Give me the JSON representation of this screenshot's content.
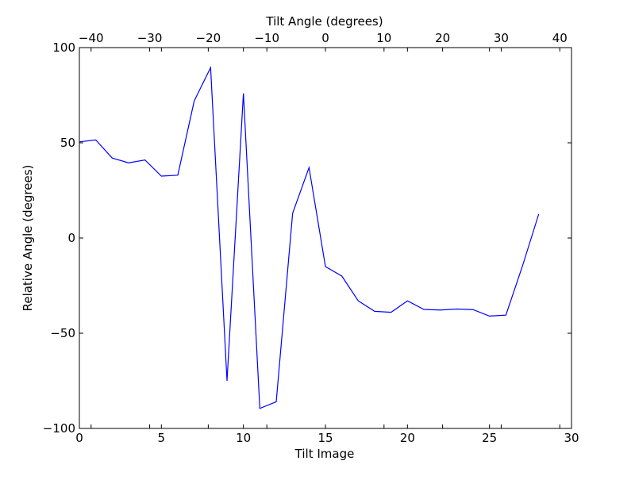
{
  "chart_data": {
    "type": "line",
    "title": "",
    "xlabel": "Tilt Image",
    "ylabel": "Relative Angle (degrees)",
    "x2label": "Tilt Angle (degrees)",
    "xlim": [
      0,
      30
    ],
    "ylim": [
      -100,
      100
    ],
    "x2lim": [
      -42,
      42
    ],
    "xticks": [
      0,
      5,
      10,
      15,
      20,
      25,
      30
    ],
    "yticks": [
      -100,
      -50,
      0,
      50,
      100
    ],
    "x2ticks": [
      -40,
      -30,
      -20,
      -10,
      0,
      10,
      20,
      30,
      40
    ],
    "xtick_labels": [
      "0",
      "5",
      "10",
      "15",
      "20",
      "25",
      "30"
    ],
    "ytick_labels": [
      "−100",
      "−50",
      "0",
      "50",
      "100"
    ],
    "x2tick_labels": [
      "−40",
      "−30",
      "−20",
      "−10",
      "0",
      "10",
      "20",
      "30",
      "40"
    ],
    "grid": false,
    "series": [
      {
        "color": "#0000ff",
        "x": [
          0,
          1,
          2,
          3,
          4,
          5,
          6,
          7,
          8,
          9,
          10,
          11,
          12,
          13,
          14,
          15,
          16,
          17,
          18,
          19,
          20,
          21,
          22,
          23,
          24,
          25,
          26,
          27,
          28
        ],
        "values": [
          50.5,
          51.5,
          42,
          39.5,
          41,
          32.5,
          33,
          72,
          89.5,
          -75,
          76,
          -89.5,
          -86,
          13,
          37,
          -15,
          -20,
          -33,
          -38.5,
          -39,
          -33,
          -37.5,
          -37.8,
          -37.3,
          -37.6,
          -41,
          -40.5,
          -15,
          12.5
        ]
      }
    ]
  }
}
